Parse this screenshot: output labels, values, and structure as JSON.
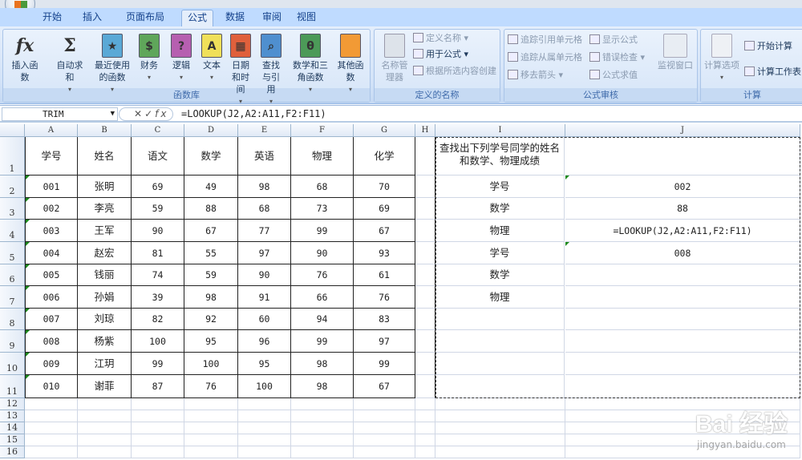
{
  "tabs": [
    "开始",
    "插入",
    "页面布局",
    "公式",
    "数据",
    "审阅",
    "视图"
  ],
  "active_tab": 3,
  "ribbon": {
    "function_library": {
      "label": "函数库",
      "buttons": [
        {
          "label": "插入函数",
          "icon": "fx-icon",
          "glyph": "fx"
        },
        {
          "label": "自动求和",
          "icon": "sigma-icon",
          "glyph": "Σ"
        },
        {
          "label": "最近使用的函数",
          "icon": "star-book-icon",
          "glyph": "★",
          "color": "#5aa9d6"
        },
        {
          "label": "财务",
          "icon": "finance-book-icon",
          "glyph": "$",
          "color": "#5fa65a"
        },
        {
          "label": "逻辑",
          "icon": "logic-book-icon",
          "glyph": "?",
          "color": "#b65fb0"
        },
        {
          "label": "文本",
          "icon": "text-book-icon",
          "glyph": "A",
          "color": "#f0e05a"
        },
        {
          "label": "日期和时间",
          "icon": "date-book-icon",
          "glyph": "▦",
          "color": "#e0603c"
        },
        {
          "label": "查找与引用",
          "icon": "lookup-book-icon",
          "glyph": "⌕",
          "color": "#4f8fcf"
        },
        {
          "label": "数学和三角函数",
          "icon": "math-book-icon",
          "glyph": "θ",
          "color": "#4c9a58"
        },
        {
          "label": "其他函数",
          "icon": "more-books-icon",
          "glyph": "",
          "color": "#f29a35"
        }
      ]
    },
    "defined_names": {
      "label": "定义的名称",
      "manager": "名称管理器",
      "items": [
        "定义名称",
        "用于公式",
        "根据所选内容创建"
      ]
    },
    "formula_auditing": {
      "label": "公式审核",
      "items": [
        "追踪引用单元格",
        "追踪从属单元格",
        "移去箭头",
        "显示公式",
        "错误检查",
        "公式求值"
      ],
      "watch": "监视窗口"
    },
    "calculation": {
      "label": "计算",
      "options": "计算选项",
      "items": [
        "开始计算",
        "计算工作表"
      ]
    }
  },
  "formula_bar": {
    "name_box": "TRIM",
    "formula": "=LOOKUP(J2,A2:A11,F2:F11)"
  },
  "columns": [
    "A",
    "B",
    "C",
    "D",
    "E",
    "F",
    "G",
    "H",
    "I",
    "J"
  ],
  "rows": [
    "1",
    "2",
    "3",
    "4",
    "5",
    "6",
    "7",
    "8",
    "9",
    "10",
    "11",
    "12",
    "13",
    "14",
    "15",
    "16"
  ],
  "table": {
    "headers": [
      "学号",
      "姓名",
      "语文",
      "数学",
      "英语",
      "物理",
      "化学"
    ],
    "rows": [
      [
        "001",
        "张明",
        "69",
        "49",
        "98",
        "68",
        "70"
      ],
      [
        "002",
        "李亮",
        "59",
        "88",
        "68",
        "73",
        "69"
      ],
      [
        "003",
        "王军",
        "90",
        "67",
        "77",
        "99",
        "67"
      ],
      [
        "004",
        "赵宏",
        "81",
        "55",
        "97",
        "90",
        "93"
      ],
      [
        "005",
        "钱丽",
        "74",
        "59",
        "90",
        "76",
        "61"
      ],
      [
        "006",
        "孙娟",
        "39",
        "98",
        "91",
        "66",
        "76"
      ],
      [
        "007",
        "刘琼",
        "82",
        "92",
        "60",
        "94",
        "83"
      ],
      [
        "008",
        "杨紫",
        "100",
        "95",
        "96",
        "99",
        "97"
      ],
      [
        "009",
        "江玥",
        "99",
        "100",
        "95",
        "98",
        "99"
      ],
      [
        "010",
        "谢菲",
        "87",
        "76",
        "100",
        "98",
        "67"
      ]
    ]
  },
  "lookup": {
    "title": "查找出下列学号同学的姓名和数学、物理成绩",
    "labels": [
      "学号",
      "数学",
      "物理",
      "学号",
      "数学",
      "物理"
    ],
    "values": [
      "002",
      "88",
      "=LOOKUP(J2,A2:A11,F2:F11)",
      "008",
      "",
      ""
    ]
  },
  "watermark": {
    "logo": "Bai 经验",
    "url": "jingyan.baidu.com"
  }
}
